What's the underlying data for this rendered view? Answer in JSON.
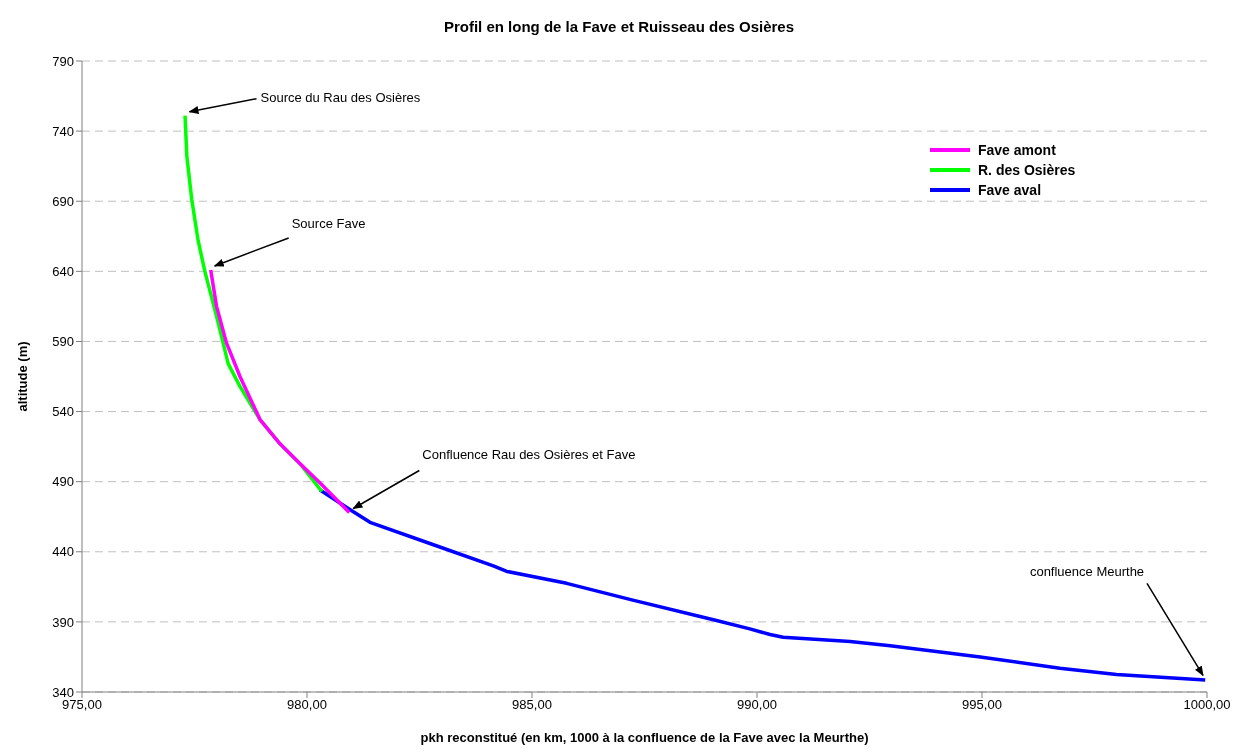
{
  "chart_data": {
    "type": "line",
    "title": "Profil en long de la Fave et Ruisseau des Osières",
    "xlabel": "pkh reconstitué (en km, 1000 à la confluence de la Fave avec la Meurthe)",
    "ylabel": "altitude (m)",
    "xlim": [
      975,
      1000
    ],
    "xticks": [
      {
        "value": 975,
        "label": "975,00"
      },
      {
        "value": 980,
        "label": "980,00"
      },
      {
        "value": 985,
        "label": "985,00"
      },
      {
        "value": 990,
        "label": "990,00"
      },
      {
        "value": 995,
        "label": "995,00"
      },
      {
        "value": 1000,
        "label": "1000,00"
      }
    ],
    "ylim": [
      340,
      790
    ],
    "yticks": [
      340,
      390,
      440,
      490,
      540,
      590,
      640,
      690,
      740,
      790
    ],
    "grid": "y",
    "legend": "top right",
    "marker": "none",
    "line_style": "solid",
    "series": [
      {
        "name": "Fave amont",
        "color": "#ff00ff",
        "x": [
          977.86,
          977.99,
          978.21,
          978.51,
          978.96,
          979.4,
          979.84,
          980.29,
          980.94
        ],
        "values": [
          641,
          615,
          589,
          565,
          534,
          517,
          503,
          489,
          468
        ]
      },
      {
        "name": "R. des Osières",
        "color": "#00ff00",
        "x": [
          977.29,
          977.33,
          977.44,
          977.58,
          977.73,
          977.99,
          978.25,
          978.51,
          978.96,
          979.4,
          979.84,
          980.33
        ],
        "values": [
          751,
          722,
          691,
          662,
          640,
          608,
          574,
          558,
          534,
          517,
          503,
          483
        ]
      },
      {
        "name": "Fave aval",
        "color": "#0000ff",
        "x": [
          980.29,
          980.96,
          981.4,
          982.81,
          984.14,
          984.44,
          985.77,
          987.24,
          989.1,
          989.84,
          990.29,
          990.58,
          992.07,
          992.96,
          994.96,
          996.73,
          997.99,
          999.96
        ],
        "values": [
          484,
          470,
          461,
          445,
          430,
          426,
          417.5,
          405.5,
          391,
          385,
          381,
          379,
          376,
          373,
          365,
          357,
          352.5,
          348.5
        ]
      }
    ],
    "annotations": [
      {
        "text": "Source du Rau des Osières",
        "x": 977.3,
        "y": 751
      },
      {
        "text": "Source Fave",
        "x": 977.86,
        "y": 641
      },
      {
        "text": "Confluence Rau des Osières et Fave",
        "x": 980.94,
        "y": 468
      },
      {
        "text": "confluence Meurthe",
        "x": 1000,
        "y": 349
      }
    ]
  }
}
